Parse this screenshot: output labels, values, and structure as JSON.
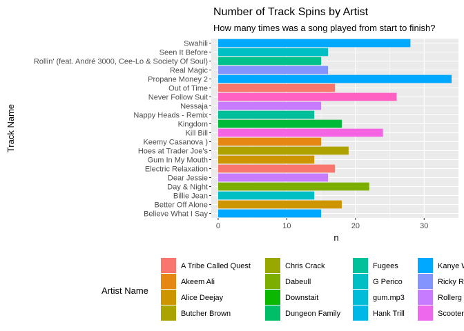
{
  "chart_data": {
    "type": "bar",
    "orientation": "horizontal",
    "title": "Number of Track Spins by Artist",
    "subtitle": "How many times was a song played from start to finish?",
    "xlabel": "n",
    "ylabel": "Track Name",
    "xlim": [
      -1,
      35
    ],
    "xticks": [
      0,
      10,
      20,
      30
    ],
    "grid": true,
    "legend_title": "Artist Name",
    "legend_position": "bottom",
    "categories": [
      "Swahili",
      "Seen It Before",
      "Rollin' (feat. André 3000, Cee-Lo & Society Of Soul)",
      "Real Magic",
      "Propane Money 2",
      "Out of Time",
      "Never Follow Suit",
      "Nessaja",
      "Nappy Heads - Remix",
      "Kingdom",
      "Kill Bill",
      "Keemy Casanova )",
      "Hoes at Trader Joe's",
      "Gum In My Mouth",
      "Electric Relaxation",
      "Dear Jessie",
      "Day & Night",
      "Billie Jean",
      "Better Off Alone",
      "Believe What I Say"
    ],
    "values": [
      28,
      16,
      15,
      16,
      34,
      17,
      26,
      15,
      14,
      18,
      24,
      15,
      19,
      14,
      17,
      16,
      22,
      14,
      18,
      15
    ],
    "bar_colors": [
      "#00A9FF",
      "#00BFC4",
      "#00C08B",
      "#8494FF",
      "#00A9FF",
      "#F8766D",
      "#FF61C3",
      "#C77CFF",
      "#00BE99",
      "#00BA38",
      "#F564E3",
      "#E68613",
      "#AEA200",
      "#CD9600",
      "#F8766D",
      "#C77CFF",
      "#7CAE00",
      "#00BFC4",
      "#CD9600",
      "#00A9FF"
    ],
    "legend": [
      {
        "label": "A Tribe Called Quest",
        "color": "#F8766D"
      },
      {
        "label": "Akeem Ali",
        "color": "#E68613"
      },
      {
        "label": "Alice Deejay",
        "color": "#CD9600"
      },
      {
        "label": "Butcher Brown",
        "color": "#ABA300"
      },
      {
        "label": "Chris Crack",
        "color": "#99A800"
      },
      {
        "label": "Dabeull",
        "color": "#7CAE00"
      },
      {
        "label": "Downstait",
        "color": "#0CB702"
      },
      {
        "label": "Dungeon Family",
        "color": "#00BE67"
      },
      {
        "label": "Fugees",
        "color": "#00C19A"
      },
      {
        "label": "G Perico",
        "color": "#00BFC4"
      },
      {
        "label": "gum.mp3",
        "color": "#00BCD8"
      },
      {
        "label": "Hank Trill",
        "color": "#00B8E7"
      },
      {
        "label": "Kanye W",
        "color": "#00A9FF"
      },
      {
        "label": "Ricky R",
        "color": "#8494FF"
      },
      {
        "label": "Rollerg",
        "color": "#C77CFF"
      },
      {
        "label": "Scooter",
        "color": "#ED68ED"
      }
    ]
  }
}
